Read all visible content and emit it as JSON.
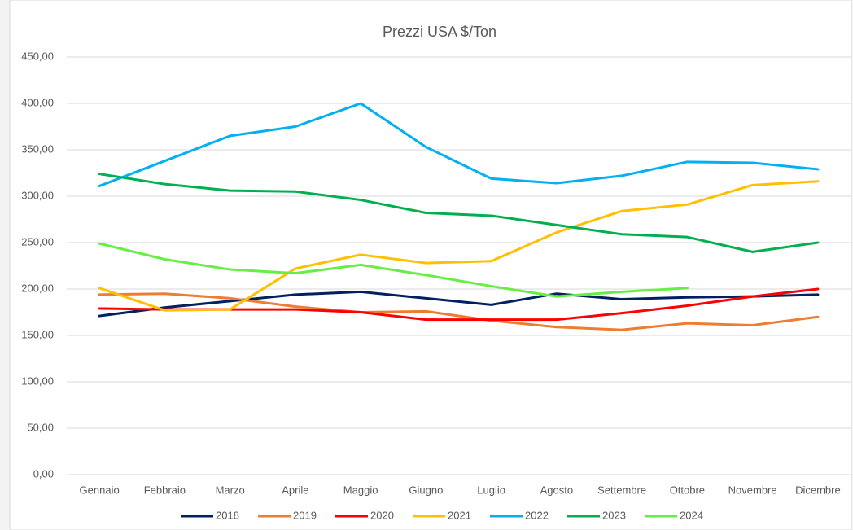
{
  "chart_data": {
    "type": "line",
    "title": "Prezzi USA $/Ton",
    "categories": [
      "Gennaio",
      "Febbraio",
      "Marzo",
      "Aprile",
      "Maggio",
      "Giugno",
      "Luglio",
      "Agosto",
      "Settembre",
      "Ottobre",
      "Novembre",
      "Dicembre"
    ],
    "series": [
      {
        "name": "2018",
        "color": "#002060",
        "values": [
          171,
          180,
          187,
          194,
          197,
          190,
          183,
          195,
          189,
          191,
          192,
          194
        ]
      },
      {
        "name": "2019",
        "color": "#ed7d31",
        "values": [
          194,
          195,
          190,
          181,
          175,
          176,
          166,
          159,
          156,
          163,
          161,
          170
        ]
      },
      {
        "name": "2020",
        "color": "#ff0000",
        "values": [
          179,
          178,
          178,
          178,
          175,
          167,
          167,
          167,
          174,
          182,
          192,
          200
        ]
      },
      {
        "name": "2021",
        "color": "#ffc000",
        "values": [
          201,
          177,
          178,
          222,
          237,
          228,
          230,
          261,
          284,
          291,
          312,
          316
        ]
      },
      {
        "name": "2022",
        "color": "#00b0f0",
        "values": [
          311,
          338,
          365,
          375,
          400,
          353,
          319,
          314,
          322,
          337,
          336,
          329
        ]
      },
      {
        "name": "2023",
        "color": "#00b050",
        "values": [
          324,
          313,
          306,
          305,
          296,
          282,
          279,
          269,
          259,
          256,
          240,
          250
        ]
      },
      {
        "name": "2024",
        "color": "#66ee44",
        "values": [
          249,
          232,
          221,
          217,
          226,
          215,
          203,
          192,
          197,
          201,
          null,
          null
        ]
      }
    ],
    "ylim": [
      0,
      450
    ],
    "yticks": [
      {
        "value": 0,
        "label": "0,00"
      },
      {
        "value": 50,
        "label": "50,00"
      },
      {
        "value": 100,
        "label": "100,00"
      },
      {
        "value": 150,
        "label": "150,00"
      },
      {
        "value": 200,
        "label": "200,00"
      },
      {
        "value": 250,
        "label": "250,00"
      },
      {
        "value": 300,
        "label": "300,00"
      },
      {
        "value": 350,
        "label": "350,00"
      },
      {
        "value": 400,
        "label": "400,00"
      },
      {
        "value": 450,
        "label": "450,00"
      }
    ],
    "grid": true,
    "legend": "bottom"
  }
}
